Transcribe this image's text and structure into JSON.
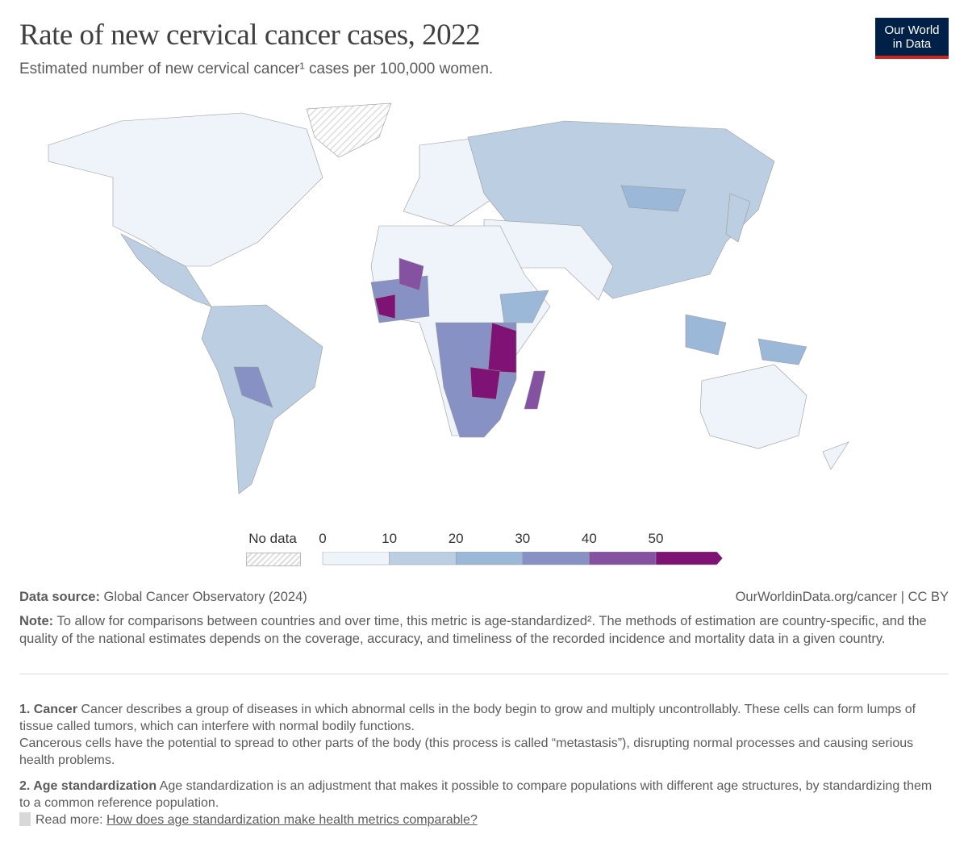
{
  "title": "Rate of new cervical cancer cases, 2022",
  "subtitle": "Estimated number of new cervical cancer¹ cases per 100,000 women.",
  "logo": {
    "line1": "Our World",
    "line2": "in Data"
  },
  "chart_data": {
    "type": "choropleth-map",
    "title": "Rate of new cervical cancer cases, 2022",
    "legend": {
      "no_data_label": "No data",
      "ticks": [
        "0",
        "10",
        "20",
        "30",
        "40",
        "50"
      ],
      "bins": [
        {
          "range": [
            0,
            10
          ],
          "color": "#eef4f9"
        },
        {
          "range": [
            10,
            20
          ],
          "color": "#bccfe2"
        },
        {
          "range": [
            20,
            30
          ],
          "color": "#9cb8d8"
        },
        {
          "range": [
            30,
            40
          ],
          "color": "#8891c3"
        },
        {
          "range": [
            40,
            50
          ],
          "color": "#8552a1"
        },
        {
          "range": [
            50,
            null
          ],
          "color": "#7e1275"
        }
      ]
    },
    "regions": [
      {
        "name": "North America",
        "bin": 0
      },
      {
        "name": "Mexico & Central America",
        "bin": 1
      },
      {
        "name": "Greenland",
        "bin": null
      },
      {
        "name": "South America",
        "bin": 1
      },
      {
        "name": "Bolivia & Paraguay",
        "bin": 3
      },
      {
        "name": "Europe",
        "bin": 0
      },
      {
        "name": "Russia & East Asia",
        "bin": 1
      },
      {
        "name": "Mongolia",
        "bin": 2
      },
      {
        "name": "Middle East & South Asia",
        "bin": 0
      },
      {
        "name": "North Africa",
        "bin": 0
      },
      {
        "name": "West Africa",
        "bin": 3
      },
      {
        "name": "Mali",
        "bin": 4
      },
      {
        "name": "Guinea",
        "bin": 5
      },
      {
        "name": "Central & Southern Africa",
        "bin": 3
      },
      {
        "name": "Tanzania & Malawi",
        "bin": 5
      },
      {
        "name": "Zimbabwe & Zambia",
        "bin": 5
      },
      {
        "name": "Madagascar",
        "bin": 4
      },
      {
        "name": "Horn of Africa",
        "bin": 2
      },
      {
        "name": "Indonesia",
        "bin": 2
      },
      {
        "name": "Papua New Guinea",
        "bin": 2
      },
      {
        "name": "Australia",
        "bin": 0
      },
      {
        "name": "New Zealand",
        "bin": 0
      },
      {
        "name": "Japan",
        "bin": 1
      }
    ]
  },
  "source": {
    "label": "Data source:",
    "text": "Global Cancer Observatory (2024)",
    "url": "OurWorldinData.org/cancer | CC BY"
  },
  "note": {
    "label": "Note:",
    "text": "To allow for comparisons between countries and over time, this metric is  age-standardized². The methods of estimation are country-specific, and the quality of the national estimates depends on the coverage, accuracy, and timeliness of the recorded incidence and mortality data in a given country."
  },
  "footnotes": [
    {
      "label": "1. Cancer",
      "text": "Cancer describes a group of diseases in which abnormal cells in the body begin to grow and multiply uncontrollably. These cells can form lumps of tissue called tumors, which can interfere with normal bodily functions.",
      "text2": "Cancerous cells have the potential to spread to other parts of the body (this process is called “metastasis”), disrupting normal processes and causing serious health problems."
    },
    {
      "label": "2. Age standardization",
      "text": "Age standardization is an adjustment that makes it possible to compare populations with different age structures, by standardizing them to a common reference population.",
      "read_more": "Read more:",
      "link": "How does age standardization make health metrics comparable?"
    }
  ]
}
